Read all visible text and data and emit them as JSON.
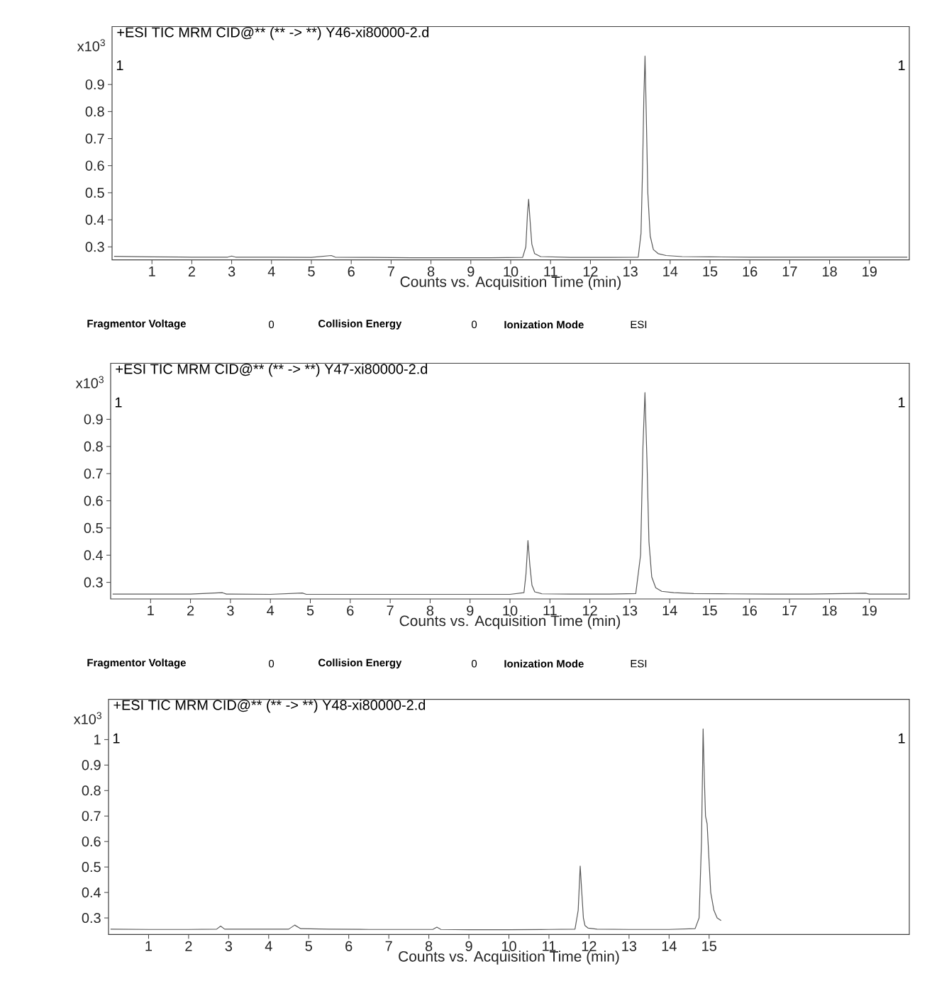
{
  "chart_data": [
    {
      "type": "line",
      "title": "+ESI TIC MRM CID@** (** -> **) Y46-xi80000-2.d",
      "xlabel": "Counts vs. Acquisition Time (min)",
      "ylabel": "x10$^{3}$",
      "annotations": [
        "1",
        "1",
        "Fragmentor Voltage",
        "0",
        "Collision Energy",
        "0",
        "Ionization Mode",
        "ESI"
      ],
      "x": [
        0.05,
        1.0,
        2.0,
        2.9,
        3.0,
        3.1,
        4.0,
        5.0,
        5.5,
        5.6,
        6.5,
        7.5,
        8.5,
        9.5,
        10.3,
        10.38,
        10.42,
        10.45,
        10.48,
        10.53,
        10.6,
        10.75,
        11.5,
        12.5,
        13.2,
        13.27,
        13.31,
        13.34,
        13.37,
        13.4,
        13.44,
        13.5,
        13.58,
        13.7,
        13.9,
        14.3,
        15.0,
        16.0,
        17.0,
        18.0,
        19.0,
        19.95
      ],
      "series": [
        {
          "color": "#5a5a5a",
          "values": [
            0.265,
            0.263,
            0.262,
            0.262,
            0.266,
            0.262,
            0.262,
            0.261,
            0.268,
            0.262,
            0.261,
            0.26,
            0.26,
            0.26,
            0.261,
            0.3,
            0.42,
            0.476,
            0.41,
            0.31,
            0.275,
            0.264,
            0.261,
            0.261,
            0.262,
            0.35,
            0.6,
            0.85,
            1.005,
            0.8,
            0.5,
            0.34,
            0.29,
            0.275,
            0.268,
            0.264,
            0.263,
            0.262,
            0.262,
            0.262,
            0.262,
            0.262
          ]
        }
      ],
      "xlim": [
        0,
        20
      ],
      "ylim": [
        0.252,
        1.114
      ],
      "xticks": [
        1,
        2,
        3,
        4,
        5,
        6,
        7,
        8,
        9,
        10,
        11,
        12,
        13,
        14,
        15,
        16,
        17,
        18,
        19
      ],
      "yticks": [
        0.3,
        0.4,
        0.5,
        0.6,
        0.7,
        0.8,
        0.9
      ]
    },
    {
      "type": "line",
      "title": "+ESI TIC MRM CID@** (** -> **) Y47-xi80000-2.d",
      "xlabel": "Counts vs. Acquisition Time (min)",
      "ylabel": "x10$^{3}$",
      "annotations": [
        "1",
        "1",
        "Fragmentor Voltage",
        "0",
        "Collision Energy",
        "0",
        "Ionization Mode",
        "ESI"
      ],
      "x": [
        0.05,
        1.0,
        2.0,
        2.8,
        2.9,
        3.0,
        4.0,
        4.8,
        4.9,
        5.0,
        6.0,
        7.0,
        8.0,
        9.0,
        10.0,
        10.35,
        10.4,
        10.45,
        10.5,
        10.55,
        10.62,
        10.8,
        11.5,
        12.5,
        13.15,
        13.27,
        13.33,
        13.38,
        13.43,
        13.48,
        13.55,
        13.65,
        13.8,
        14.1,
        14.6,
        15.5,
        16.5,
        17.5,
        18.9,
        19.0,
        19.95
      ],
      "series": [
        {
          "color": "#5a5a5a",
          "values": [
            0.257,
            0.257,
            0.257,
            0.262,
            0.257,
            0.257,
            0.256,
            0.261,
            0.256,
            0.256,
            0.256,
            0.256,
            0.256,
            0.256,
            0.256,
            0.262,
            0.33,
            0.454,
            0.36,
            0.29,
            0.265,
            0.258,
            0.257,
            0.257,
            0.259,
            0.4,
            0.8,
            0.998,
            0.75,
            0.45,
            0.32,
            0.28,
            0.267,
            0.262,
            0.259,
            0.258,
            0.257,
            0.257,
            0.26,
            0.257,
            0.257
          ]
        }
      ],
      "xlim": [
        0,
        20
      ],
      "ylim": [
        0.239,
        1.106
      ],
      "xticks": [
        1,
        2,
        3,
        4,
        5,
        6,
        7,
        8,
        9,
        10,
        11,
        12,
        13,
        14,
        15,
        16,
        17,
        18,
        19
      ],
      "yticks": [
        0.3,
        0.4,
        0.5,
        0.6,
        0.7,
        0.8,
        0.9
      ]
    },
    {
      "type": "line",
      "title": "+ESI TIC MRM CID@** (** -> **) Y48-xi80000-2.d",
      "xlabel": "Counts vs. Acquisition Time (min)",
      "ylabel": "x10$^{3}$",
      "annotations": [
        "1",
        "1"
      ],
      "x": [
        0.05,
        1.0,
        2.0,
        2.7,
        2.8,
        2.9,
        3.5,
        4.5,
        4.65,
        4.8,
        5.5,
        6.5,
        7.5,
        8.1,
        8.2,
        8.3,
        9.0,
        10.0,
        11.0,
        11.65,
        11.73,
        11.78,
        11.82,
        11.86,
        11.9,
        11.98,
        12.2,
        13.0,
        14.0,
        14.65,
        14.75,
        14.81,
        14.85,
        14.88,
        14.91,
        14.95,
        14.99,
        15.04,
        15.12,
        15.2,
        15.3
      ],
      "series": [
        {
          "color": "#5a5a5a",
          "values": [
            0.256,
            0.255,
            0.255,
            0.256,
            0.268,
            0.256,
            0.256,
            0.256,
            0.272,
            0.258,
            0.256,
            0.255,
            0.255,
            0.255,
            0.264,
            0.255,
            0.254,
            0.254,
            0.255,
            0.256,
            0.33,
            0.504,
            0.4,
            0.3,
            0.27,
            0.26,
            0.256,
            0.255,
            0.255,
            0.258,
            0.3,
            0.6,
            1.042,
            0.85,
            0.7,
            0.67,
            0.55,
            0.4,
            0.33,
            0.3,
            0.29
          ]
        }
      ],
      "xlim": [
        0,
        20
      ],
      "ylim": [
        0.235,
        1.158
      ],
      "xticks": [
        1,
        2,
        3,
        4,
        5,
        6,
        7,
        8,
        9,
        10,
        11,
        12,
        13,
        14,
        15
      ],
      "yticks": [
        0.3,
        0.4,
        0.5,
        0.6,
        0.7,
        0.8,
        0.9,
        1
      ]
    }
  ]
}
